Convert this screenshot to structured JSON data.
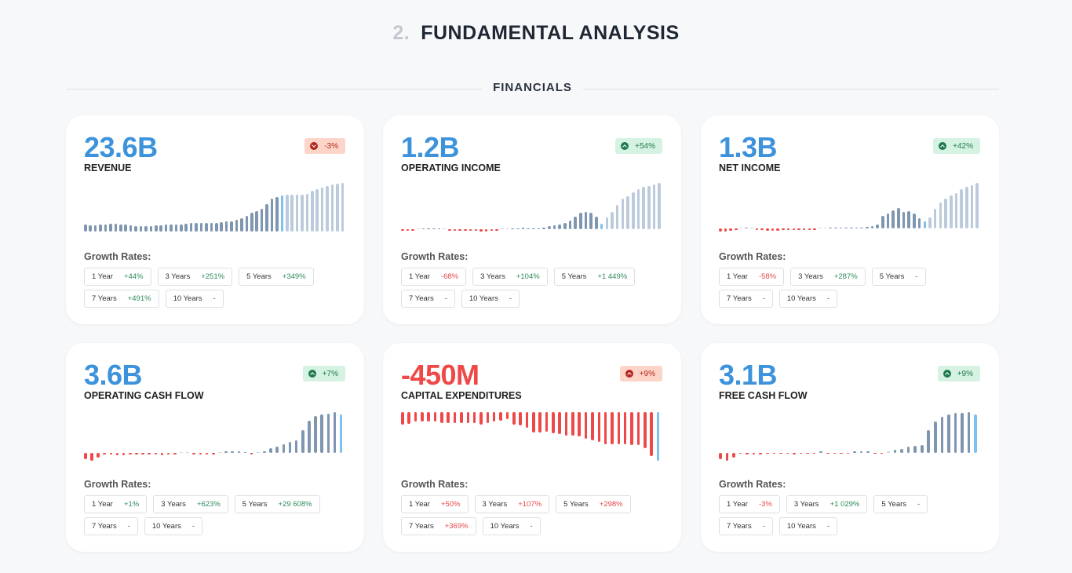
{
  "header": {
    "number": "2.",
    "title": "FUNDAMENTAL ANALYSIS",
    "section": "FINANCIALS"
  },
  "growth_label": "Growth Rates:",
  "colors": {
    "blue": "#3d93db",
    "red": "#ef4848",
    "bar_hist": "#7f96b0",
    "bar_proj": "#bccbdc",
    "bar_current": "#7cc1f0"
  },
  "cards": [
    {
      "value": "23.6B",
      "value_negative": false,
      "name": "REVENUE",
      "badge": {
        "text": "-3%",
        "tone": "down",
        "icon": "chevron-down-circle-icon",
        "dir": "d"
      },
      "bars": [
        14,
        13,
        13,
        14,
        15,
        16,
        16,
        15,
        14,
        13,
        12,
        12,
        11,
        12,
        13,
        13,
        14,
        14,
        15,
        15,
        16,
        18,
        18,
        18,
        17,
        17,
        17,
        19,
        21,
        21,
        24,
        27,
        32,
        38,
        42,
        47,
        56,
        68,
        71,
        75,
        76,
        76,
        76,
        76,
        78,
        84,
        87,
        90,
        93,
        96,
        98,
        100
      ],
      "current_index": 39,
      "rates": [
        {
          "label": "1 Year",
          "value": "+44%",
          "tone": "pos"
        },
        {
          "label": "3 Years",
          "value": "+251%",
          "tone": "pos"
        },
        {
          "label": "5 Years",
          "value": "+349%",
          "tone": "pos"
        },
        {
          "label": "7 Years",
          "value": "+491%",
          "tone": "pos"
        },
        {
          "label": "10 Years",
          "value": "-",
          "tone": "na"
        }
      ]
    },
    {
      "value": "1.2B",
      "value_negative": false,
      "name": "OPERATING INCOME",
      "badge": {
        "text": "+54%",
        "tone": "up",
        "icon": "chevron-up-circle-icon",
        "dir": "u"
      },
      "bars": [
        -4,
        -4,
        -4,
        0,
        1,
        1,
        1,
        1,
        0,
        -2,
        -4,
        -4,
        -4,
        -4,
        -4,
        -5,
        -5,
        -4,
        -4,
        0,
        0,
        1,
        2,
        3,
        2,
        1,
        1,
        4,
        7,
        9,
        10,
        14,
        19,
        27,
        35,
        38,
        35,
        27,
        12,
        25,
        38,
        52,
        66,
        72,
        80,
        87,
        92,
        94,
        97,
        100
      ],
      "current_index": 38,
      "rates": [
        {
          "label": "1 Year",
          "value": "-68%",
          "tone": "neg"
        },
        {
          "label": "3 Years",
          "value": "+104%",
          "tone": "pos"
        },
        {
          "label": "5 Years",
          "value": "+1 449%",
          "tone": "pos"
        },
        {
          "label": "7 Years",
          "value": "-",
          "tone": "na"
        },
        {
          "label": "10 Years",
          "value": "-",
          "tone": "na"
        }
      ]
    },
    {
      "value": "1.3B",
      "value_negative": false,
      "name": "NET INCOME",
      "badge": {
        "text": "+42%",
        "tone": "up",
        "icon": "chevron-up-circle-icon",
        "dir": "u"
      },
      "bars": [
        -7,
        -7,
        -6,
        -2,
        0,
        2,
        0,
        -4,
        -4,
        -5,
        -6,
        -5,
        -4,
        -3,
        -3,
        -4,
        -4,
        -4,
        -4,
        0,
        0,
        2,
        2,
        2,
        2,
        1,
        1,
        2,
        3,
        5,
        9,
        30,
        35,
        41,
        48,
        38,
        40,
        35,
        24,
        16,
        26,
        45,
        59,
        68,
        76,
        82,
        90,
        96,
        100,
        105
      ],
      "current_index": 39,
      "rates": [
        {
          "label": "1 Year",
          "value": "-58%",
          "tone": "neg"
        },
        {
          "label": "3 Years",
          "value": "+287%",
          "tone": "pos"
        },
        {
          "label": "5 Years",
          "value": "-",
          "tone": "na"
        },
        {
          "label": "7 Years",
          "value": "-",
          "tone": "na"
        },
        {
          "label": "10 Years",
          "value": "-",
          "tone": "na"
        }
      ]
    },
    {
      "value": "3.6B",
      "value_negative": false,
      "name": "OPERATING CASH FLOW",
      "badge": {
        "text": "+7%",
        "tone": "up",
        "icon": "chevron-up-circle-icon",
        "dir": "u"
      },
      "bars": [
        -12,
        -16,
        -9,
        -3,
        -3,
        -4,
        -4,
        -3,
        -1,
        -1,
        -1,
        -3,
        -4,
        -2,
        -3,
        0,
        0,
        -1,
        -3,
        -3,
        -3,
        0,
        4,
        4,
        4,
        1,
        -1,
        0,
        4,
        11,
        15,
        20,
        24,
        27,
        50,
        70,
        80,
        83,
        85,
        88,
        83
      ],
      "current_index": 40,
      "rates": [
        {
          "label": "1 Year",
          "value": "+1%",
          "tone": "pos"
        },
        {
          "label": "3 Years",
          "value": "+623%",
          "tone": "pos"
        },
        {
          "label": "5 Years",
          "value": "+29 608%",
          "tone": "pos"
        },
        {
          "label": "7 Years",
          "value": "-",
          "tone": "na"
        },
        {
          "label": "10 Years",
          "value": "-",
          "tone": "na"
        }
      ]
    },
    {
      "value": "-450M",
      "value_negative": true,
      "name": "CAPITAL EXPENDITURES",
      "badge": {
        "text": "+9%",
        "tone": "down",
        "icon": "chevron-up-circle-icon",
        "dir": "u"
      },
      "bars": [
        -25,
        -24,
        -20,
        -20,
        -20,
        -20,
        -23,
        -23,
        -23,
        -22,
        -22,
        -22,
        -25,
        -22,
        -20,
        -18,
        -14,
        -25,
        -28,
        -33,
        -42,
        -42,
        -40,
        -43,
        -45,
        -48,
        -48,
        -50,
        -55,
        -58,
        -62,
        -66,
        -66,
        -66,
        -66,
        -68,
        -68,
        -74,
        -90,
        -100
      ],
      "current_index": 39,
      "rates": [
        {
          "label": "1 Year",
          "value": "+50%",
          "tone": "neg"
        },
        {
          "label": "3 Years",
          "value": "+107%",
          "tone": "neg"
        },
        {
          "label": "5 Years",
          "value": "+298%",
          "tone": "neg"
        },
        {
          "label": "7 Years",
          "value": "+369%",
          "tone": "neg"
        },
        {
          "label": "10 Years",
          "value": "-",
          "tone": "na"
        }
      ]
    },
    {
      "value": "3.1B",
      "value_negative": false,
      "name": "FREE CASH FLOW",
      "badge": {
        "text": "+9%",
        "tone": "up",
        "icon": "chevron-up-circle-icon",
        "dir": "u"
      },
      "bars": [
        -14,
        -18,
        -11,
        -3,
        -4,
        -4,
        -4,
        -3,
        -2,
        -2,
        -3,
        -4,
        -3,
        -3,
        -2,
        1,
        -3,
        -3,
        -3,
        -1,
        1,
        1,
        1,
        -3,
        -3,
        0,
        6,
        9,
        14,
        16,
        18,
        50,
        70,
        80,
        86,
        90,
        90,
        91,
        86
      ],
      "current_index": 38,
      "rates": [
        {
          "label": "1 Year",
          "value": "-3%",
          "tone": "neg"
        },
        {
          "label": "3 Years",
          "value": "+1 029%",
          "tone": "pos"
        },
        {
          "label": "5 Years",
          "value": "-",
          "tone": "na"
        },
        {
          "label": "7 Years",
          "value": "-",
          "tone": "na"
        },
        {
          "label": "10 Years",
          "value": "-",
          "tone": "na"
        }
      ]
    }
  ]
}
